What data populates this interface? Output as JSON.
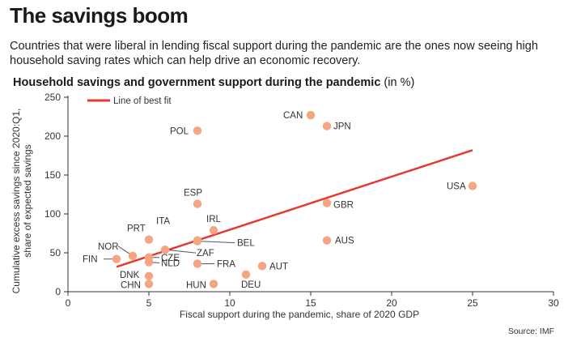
{
  "header": {
    "title": "The savings boom",
    "subtitle": "Countries that were liberal in lending fiscal support during the pandemic are the ones now seeing high household saving rates which can help drive an economic recovery.",
    "chart_title": "Household savings and government support during the pandemic",
    "chart_unit": "(in %)"
  },
  "source": "Source: IMF",
  "colors": {
    "point": "#f4a582",
    "fit_line": "#e6392f",
    "text": "#333333"
  },
  "chart_data": {
    "type": "scatter",
    "xlabel": "Fiscal support during the pandemic, share of 2020 GDP",
    "ylabel_line1": "Cumulative excess savings since 2020:Q1,",
    "ylabel_line2": "share of expected savings",
    "xlim": [
      0,
      30
    ],
    "ylim": [
      0,
      250
    ],
    "xticks": [
      0,
      5,
      10,
      15,
      20,
      25,
      30
    ],
    "yticks": [
      0,
      50,
      100,
      150,
      200,
      250
    ],
    "legend": {
      "label": "Line of best fit",
      "position": "top-left"
    },
    "best_fit": {
      "x": [
        3,
        25
      ],
      "y": [
        32,
        182
      ]
    },
    "points": [
      {
        "label": "CAN",
        "x": 15,
        "y": 227
      },
      {
        "label": "JPN",
        "x": 16,
        "y": 213
      },
      {
        "label": "POL",
        "x": 8,
        "y": 207
      },
      {
        "label": "USA",
        "x": 25,
        "y": 136
      },
      {
        "label": "ESP",
        "x": 8,
        "y": 113
      },
      {
        "label": "GBR",
        "x": 16,
        "y": 114
      },
      {
        "label": "IRL",
        "x": 9,
        "y": 79
      },
      {
        "label": "ITA",
        "x": 8,
        "y": 66
      },
      {
        "label": "BEL",
        "x": 8,
        "y": 65
      },
      {
        "label": "PRT",
        "x": 5,
        "y": 67
      },
      {
        "label": "AUS",
        "x": 16,
        "y": 66
      },
      {
        "label": "ZAF",
        "x": 6,
        "y": 54
      },
      {
        "label": "NOR",
        "x": 4,
        "y": 46
      },
      {
        "label": "FIN",
        "x": 3,
        "y": 42
      },
      {
        "label": "CZE",
        "x": 5,
        "y": 44
      },
      {
        "label": "NLD",
        "x": 5,
        "y": 38
      },
      {
        "label": "FRA",
        "x": 8,
        "y": 36
      },
      {
        "label": "AUT",
        "x": 12,
        "y": 33
      },
      {
        "label": "DNK",
        "x": 5,
        "y": 20
      },
      {
        "label": "DEU",
        "x": 11,
        "y": 22
      },
      {
        "label": "CHN",
        "x": 5,
        "y": 10
      },
      {
        "label": "HUN",
        "x": 9,
        "y": 10
      }
    ]
  }
}
